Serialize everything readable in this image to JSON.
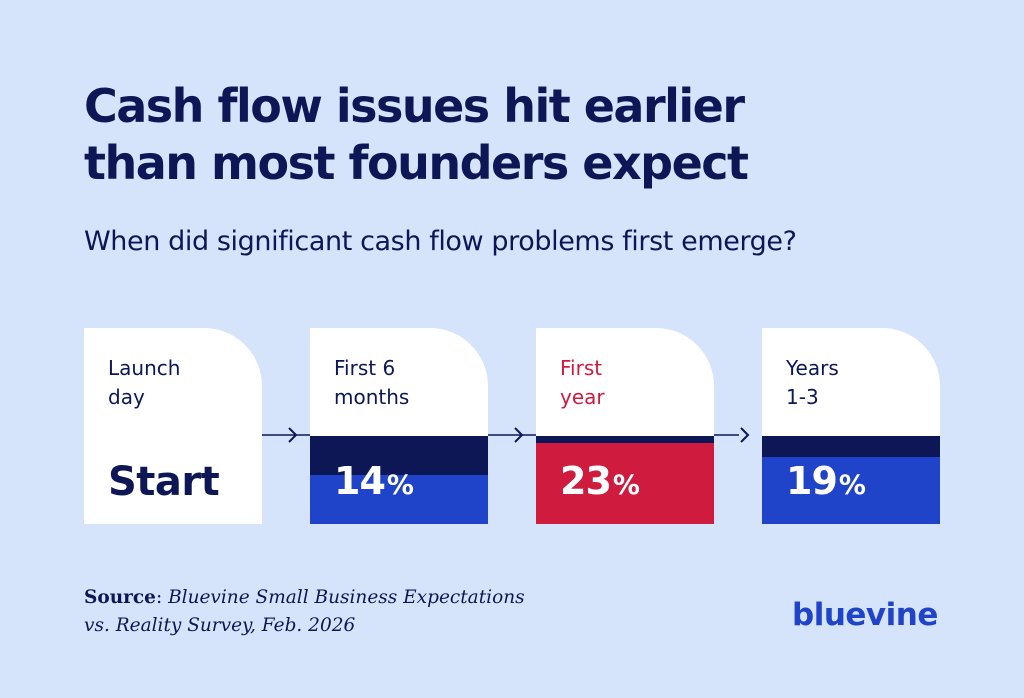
{
  "title_lines": [
    "Cash flow issues hit earlier",
    "than most founders expect"
  ],
  "subtitle": "When did significant cash flow problems first emerge?",
  "stages": [
    {
      "label_lines": [
        "Launch",
        "day"
      ],
      "display": "Start"
    },
    {
      "label_lines": [
        "First 6",
        "months"
      ],
      "value": 14,
      "unit": "%"
    },
    {
      "label_lines": [
        "First",
        "year"
      ],
      "value": 23,
      "unit": "%",
      "highlight": true
    },
    {
      "label_lines": [
        "Years",
        "1-3"
      ],
      "value": 19,
      "unit": "%"
    }
  ],
  "chart_data": {
    "type": "bar",
    "title": "When did significant cash flow problems first emerge?",
    "categories": [
      "Launch day",
      "First 6 months",
      "First year",
      "Years 1-3"
    ],
    "values": [
      null,
      14,
      23,
      19
    ],
    "unit": "%",
    "ylim": [
      0,
      25
    ],
    "highlighted_category": "First year",
    "grid": false
  },
  "source": {
    "label": "Source",
    "separator": ": ",
    "line1": "Bluevine Small Business Expectations",
    "line2": "vs. Reality Survey, Feb. 2026"
  },
  "logo_text": "bluevine",
  "colors": {
    "background": "#d6e4fb",
    "navy": "#0d1756",
    "bar_blue": "#1f43c9",
    "highlight_red": "#cf1b3d",
    "card": "#ffffff"
  }
}
